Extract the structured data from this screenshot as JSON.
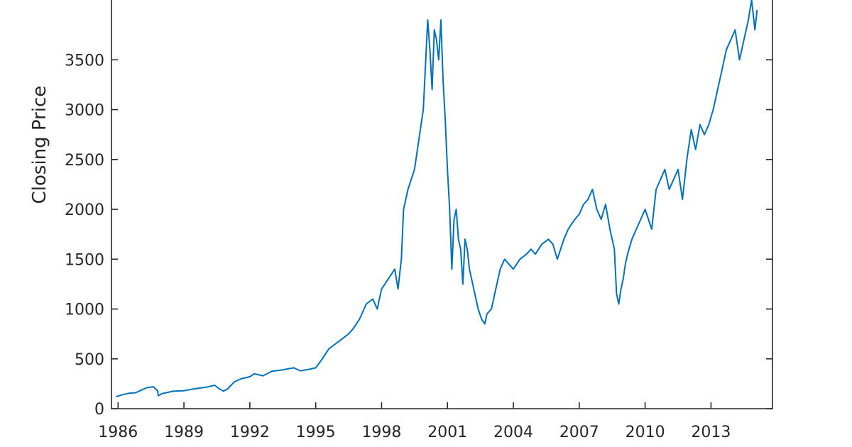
{
  "chart_data": {
    "type": "line",
    "title": "",
    "xlabel": "",
    "ylabel": "Closing Price",
    "xlim": [
      1985.7,
      2015.8
    ],
    "ylim": [
      0,
      4100
    ],
    "grid": false,
    "legend": "none",
    "colors": {
      "series": "#0072bd",
      "axes": "#262626"
    },
    "x_ticks": [
      1986,
      1989,
      1992,
      1995,
      1998,
      2001,
      2004,
      2007,
      2010,
      2013
    ],
    "x_tick_labels": [
      "1986",
      "1989",
      "1992",
      "1995",
      "1998",
      "2001",
      "2004",
      "2007",
      "2010",
      "2013"
    ],
    "y_ticks": [
      0,
      500,
      1000,
      1500,
      2000,
      2500,
      3000,
      3500
    ],
    "y_tick_labels": [
      "0",
      "500",
      "1000",
      "1500",
      "2000",
      "2500",
      "3000",
      "3500"
    ],
    "series": [
      {
        "x": [
          1985.9,
          1986.2,
          1986.5,
          1986.8,
          1987.0,
          1987.3,
          1987.6,
          1987.8,
          1987.83,
          1988.0,
          1988.5,
          1989.0,
          1989.5,
          1990.0,
          1990.4,
          1990.6,
          1990.8,
          1991.0,
          1991.3,
          1991.6,
          1992.0,
          1992.2,
          1992.6,
          1993.0,
          1993.5,
          1994.0,
          1994.3,
          1994.7,
          1995.0,
          1995.3,
          1995.6,
          1995.9,
          1996.2,
          1996.5,
          1996.7,
          1997.0,
          1997.3,
          1997.6,
          1997.8,
          1998.0,
          1998.3,
          1998.6,
          1998.75,
          1998.9,
          1999.0,
          1999.2,
          1999.5,
          1999.7,
          1999.9,
          2000.1,
          2000.2,
          2000.3,
          2000.4,
          2000.5,
          2000.6,
          2000.7,
          2000.8,
          2000.9,
          2001.0,
          2001.1,
          2001.2,
          2001.3,
          2001.4,
          2001.5,
          2001.6,
          2001.7,
          2001.8,
          2001.9,
          2002.0,
          2002.2,
          2002.4,
          2002.55,
          2002.7,
          2002.8,
          2003.0,
          2003.2,
          2003.4,
          2003.6,
          2003.8,
          2004.0,
          2004.3,
          2004.6,
          2004.8,
          2005.0,
          2005.3,
          2005.6,
          2005.8,
          2006.0,
          2006.3,
          2006.5,
          2006.8,
          2007.0,
          2007.2,
          2007.4,
          2007.6,
          2007.8,
          2008.0,
          2008.2,
          2008.4,
          2008.6,
          2008.7,
          2008.8,
          2008.9,
          2009.0,
          2009.1,
          2009.2,
          2009.4,
          2009.6,
          2009.8,
          2010.0,
          2010.3,
          2010.5,
          2010.7,
          2010.9,
          2011.1,
          2011.3,
          2011.5,
          2011.7,
          2011.9,
          2012.1,
          2012.3,
          2012.5,
          2012.7,
          2012.9,
          2013.1,
          2013.3,
          2013.5,
          2013.7,
          2013.9,
          2014.1,
          2014.3,
          2014.5,
          2014.7,
          2014.85,
          2015.0,
          2015.1
        ],
        "y": [
          120,
          140,
          155,
          160,
          180,
          210,
          220,
          180,
          130,
          150,
          175,
          180,
          200,
          215,
          235,
          200,
          175,
          200,
          270,
          300,
          320,
          350,
          330,
          375,
          390,
          410,
          380,
          395,
          410,
          500,
          600,
          650,
          700,
          750,
          800,
          900,
          1050,
          1100,
          1000,
          1200,
          1300,
          1400,
          1200,
          1500,
          2000,
          2200,
          2400,
          2700,
          3000,
          3900,
          3600,
          3200,
          3800,
          3700,
          3500,
          3900,
          3300,
          2900,
          2400,
          2000,
          1400,
          1900,
          2000,
          1700,
          1600,
          1250,
          1700,
          1600,
          1400,
          1200,
          1000,
          900,
          850,
          950,
          1000,
          1200,
          1400,
          1500,
          1450,
          1400,
          1500,
          1550,
          1600,
          1550,
          1650,
          1700,
          1650,
          1500,
          1700,
          1800,
          1900,
          1950,
          2050,
          2100,
          2200,
          2000,
          1900,
          2050,
          1800,
          1600,
          1150,
          1050,
          1200,
          1300,
          1450,
          1550,
          1700,
          1800,
          1900,
          2000,
          1800,
          2200,
          2300,
          2400,
          2200,
          2300,
          2400,
          2100,
          2500,
          2800,
          2600,
          2850,
          2750,
          2850,
          3000,
          3200,
          3400,
          3600,
          3700,
          3800,
          3500,
          3700,
          3900,
          4100,
          3800,
          4000
        ]
      }
    ]
  }
}
